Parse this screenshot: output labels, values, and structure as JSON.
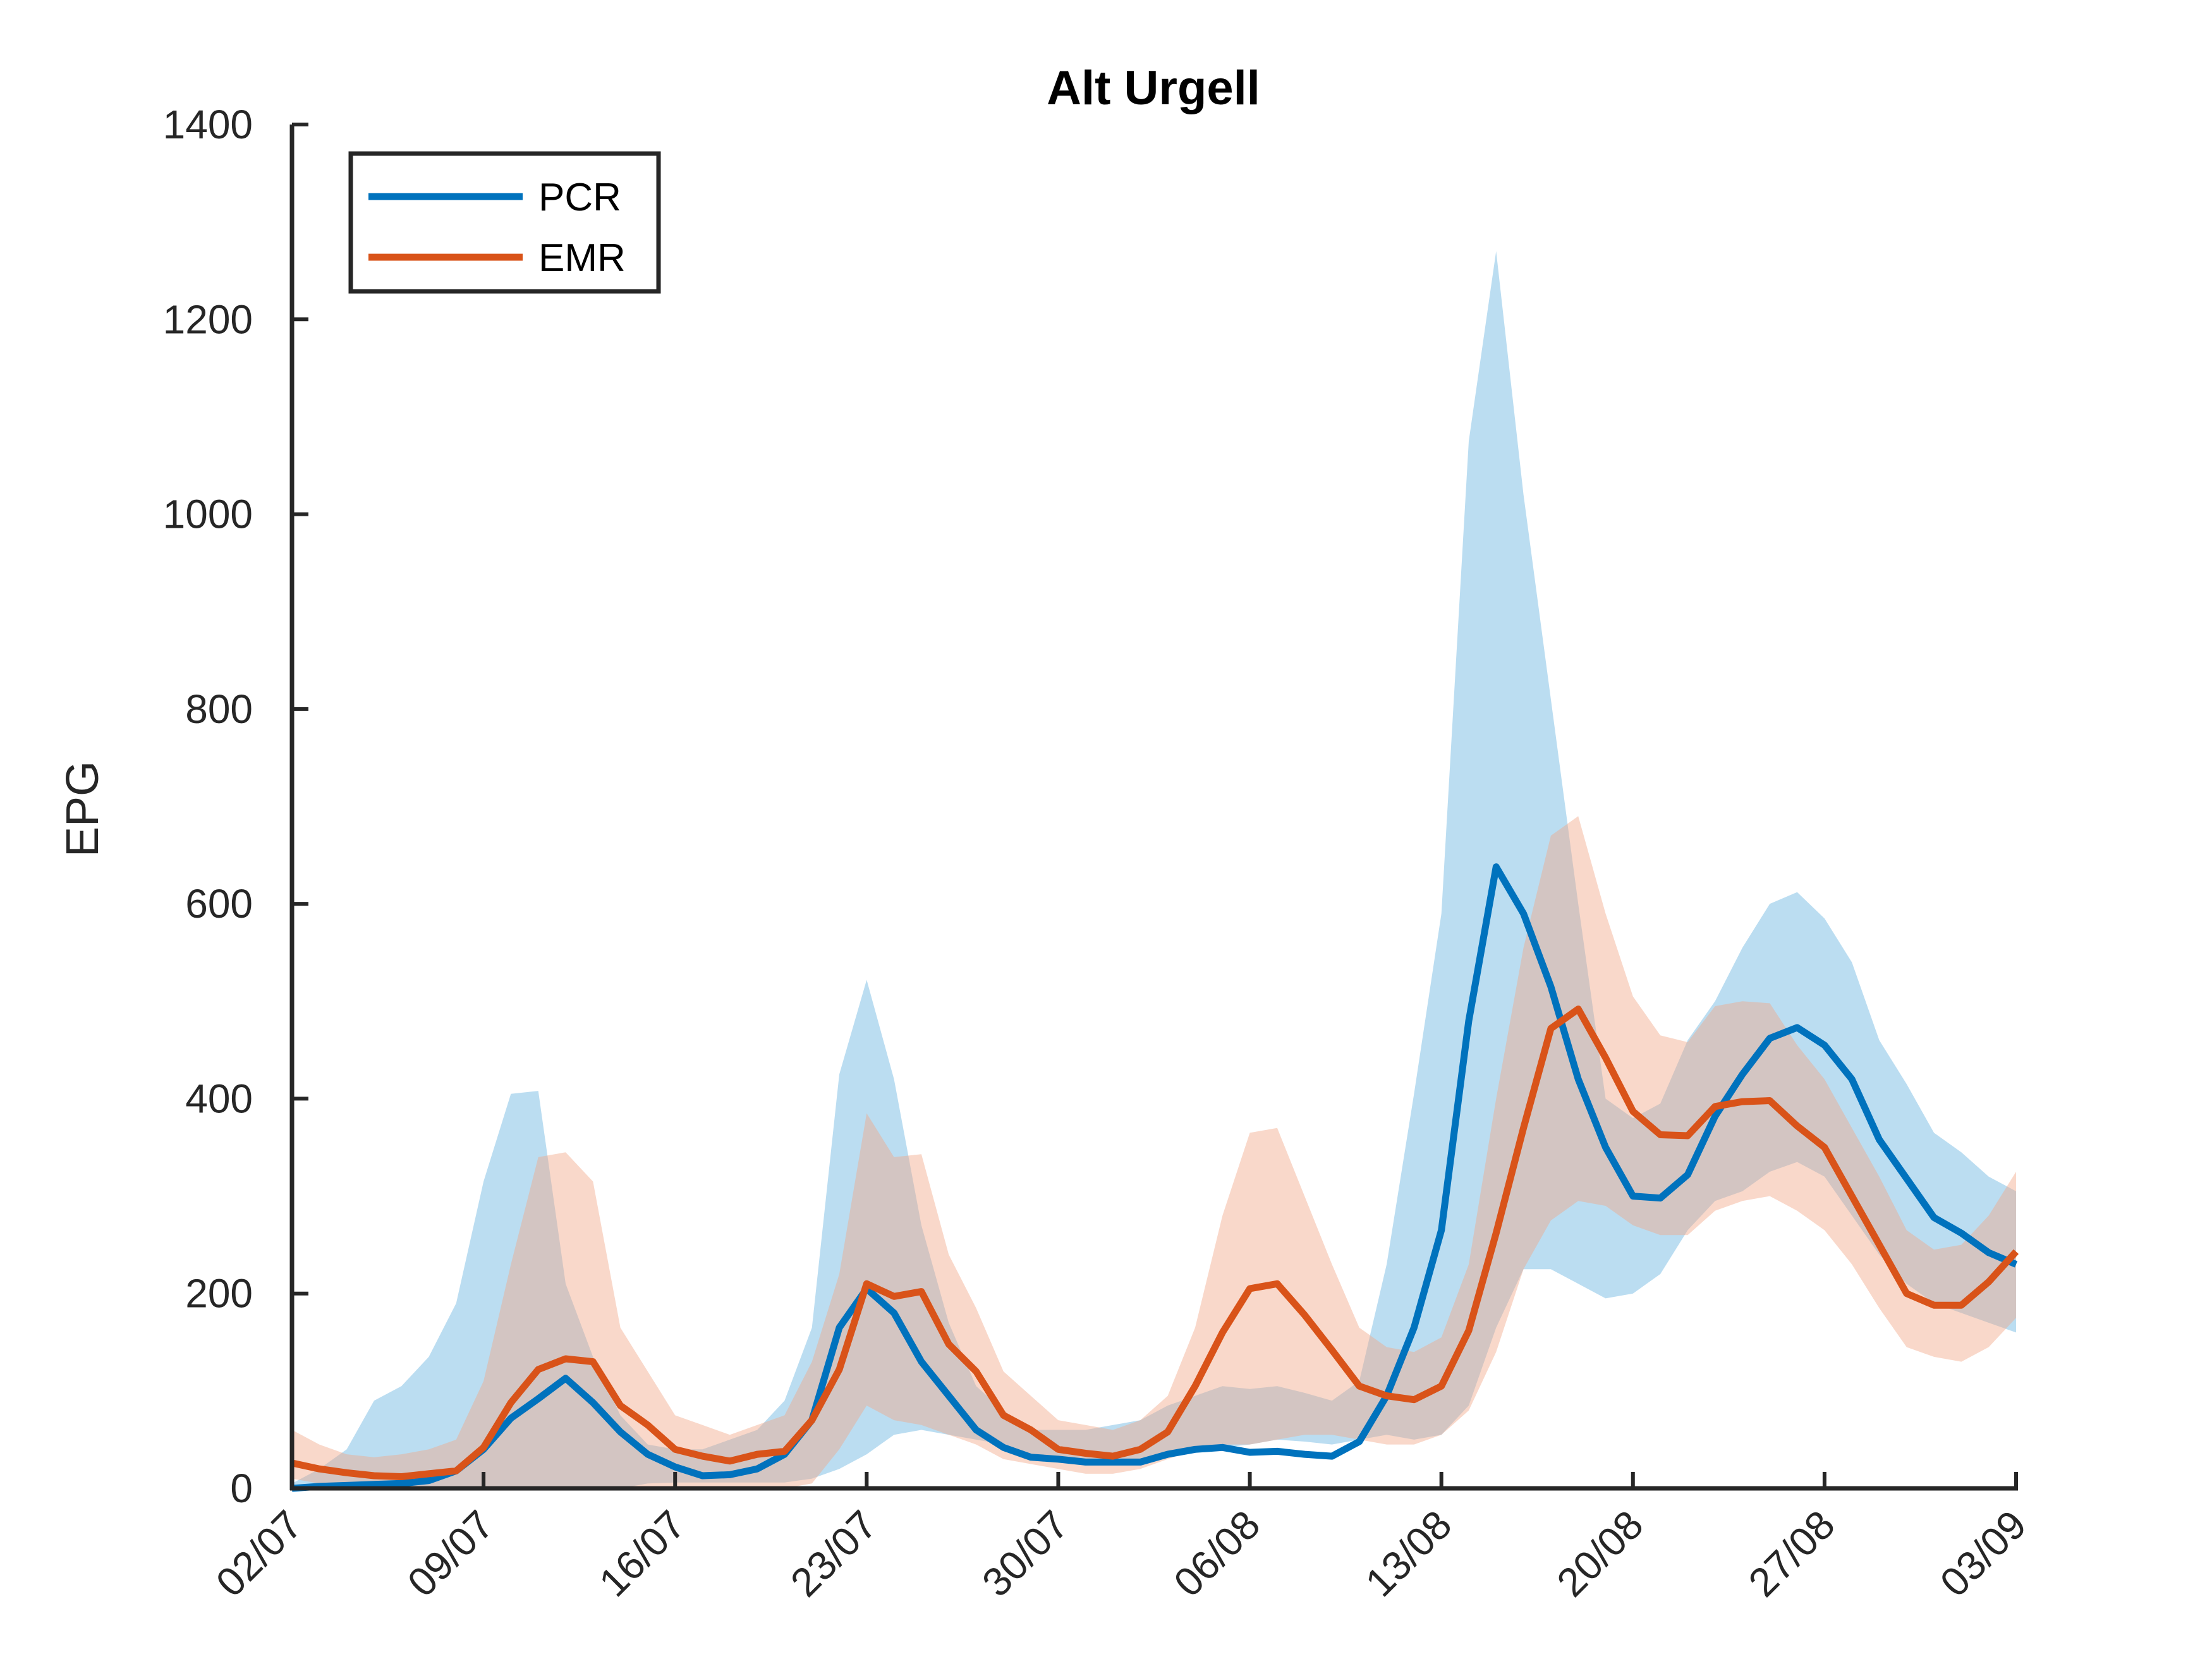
{
  "chart_data": {
    "type": "line",
    "title": "Alt Urgell",
    "xlabel": "",
    "ylabel": "EPG",
    "ylim": [
      0,
      1400
    ],
    "yticks": [
      0,
      200,
      400,
      600,
      800,
      1000,
      1200,
      1400
    ],
    "xlim": [
      "2020-07-02",
      "2020-09-03"
    ],
    "xtick_labels": [
      "02/07",
      "09/07",
      "16/07",
      "23/07",
      "30/07",
      "06/08",
      "13/08",
      "20/08",
      "27/08",
      "03/09"
    ],
    "legend": {
      "position": "top-left",
      "entries": [
        "PCR",
        "EMR"
      ]
    },
    "grid": false,
    "series": [
      {
        "name": "PCR",
        "color": "#0072BD",
        "band_color": "#4DA6D9",
        "x": [
          "2020-07-02",
          "2020-07-03",
          "2020-07-04",
          "2020-07-05",
          "2020-07-06",
          "2020-07-07",
          "2020-07-08",
          "2020-07-09",
          "2020-07-10",
          "2020-07-11",
          "2020-07-12",
          "2020-07-13",
          "2020-07-14",
          "2020-07-15",
          "2020-07-16",
          "2020-07-17",
          "2020-07-18",
          "2020-07-19",
          "2020-07-20",
          "2020-07-21",
          "2020-07-22",
          "2020-07-23",
          "2020-07-24",
          "2020-07-25",
          "2020-07-26",
          "2020-07-27",
          "2020-07-28",
          "2020-07-29",
          "2020-07-30",
          "2020-07-31",
          "2020-08-01",
          "2020-08-02",
          "2020-08-03",
          "2020-08-04",
          "2020-08-05",
          "2020-08-06",
          "2020-08-07",
          "2020-08-08",
          "2020-08-09",
          "2020-08-10",
          "2020-08-11",
          "2020-08-12",
          "2020-08-13",
          "2020-08-14",
          "2020-08-15",
          "2020-08-16",
          "2020-08-17",
          "2020-08-18",
          "2020-08-19",
          "2020-08-20",
          "2020-08-21",
          "2020-08-22",
          "2020-08-23",
          "2020-08-24",
          "2020-08-25",
          "2020-08-26",
          "2020-08-27",
          "2020-08-28",
          "2020-08-29",
          "2020-08-30",
          "2020-08-31",
          "2020-09-01",
          "2020-09-02",
          "2020-09-03"
        ],
        "values": [
          0,
          2,
          3,
          4,
          5,
          8,
          18,
          40,
          72,
          92,
          113,
          88,
          58,
          35,
          22,
          13,
          14,
          20,
          35,
          70,
          165,
          205,
          180,
          130,
          95,
          60,
          42,
          32,
          30,
          27,
          27,
          27,
          35,
          40,
          42,
          37,
          38,
          35,
          33,
          48,
          95,
          165,
          265,
          480,
          638,
          590,
          515,
          420,
          350,
          300,
          298,
          322,
          382,
          425,
          462,
          473,
          455,
          420,
          358,
          318,
          278,
          262,
          242,
          230
        ],
        "lower": [
          0,
          0,
          0,
          0,
          0,
          0,
          0,
          0,
          0,
          0,
          0,
          0,
          0,
          5,
          6,
          6,
          6,
          6,
          6,
          10,
          20,
          35,
          55,
          60,
          55,
          50,
          45,
          32,
          30,
          27,
          27,
          27,
          35,
          40,
          42,
          45,
          50,
          48,
          45,
          50,
          55,
          50,
          55,
          85,
          165,
          225,
          225,
          210,
          195,
          200,
          220,
          265,
          295,
          305,
          325,
          335,
          320,
          280,
          240,
          210,
          190,
          180,
          170,
          160
        ],
        "upper": [
          5,
          20,
          40,
          90,
          105,
          135,
          190,
          315,
          405,
          408,
          210,
          135,
          75,
          45,
          40,
          40,
          50,
          60,
          90,
          165,
          425,
          522,
          420,
          270,
          170,
          105,
          80,
          60,
          60,
          60,
          65,
          70,
          85,
          95,
          105,
          102,
          105,
          98,
          90,
          110,
          230,
          405,
          590,
          1075,
          1270,
          1020,
          810,
          600,
          400,
          380,
          395,
          460,
          500,
          555,
          600,
          612,
          585,
          540,
          460,
          415,
          365,
          345,
          320,
          305
        ]
      },
      {
        "name": "EMR",
        "color": "#D95319",
        "band_color": "#F2A98A",
        "x": [
          "2020-07-02",
          "2020-07-03",
          "2020-07-04",
          "2020-07-05",
          "2020-07-06",
          "2020-07-07",
          "2020-07-08",
          "2020-07-09",
          "2020-07-10",
          "2020-07-11",
          "2020-07-12",
          "2020-07-13",
          "2020-07-14",
          "2020-07-15",
          "2020-07-16",
          "2020-07-17",
          "2020-07-18",
          "2020-07-19",
          "2020-07-20",
          "2020-07-21",
          "2020-07-22",
          "2020-07-23",
          "2020-07-24",
          "2020-07-25",
          "2020-07-26",
          "2020-07-27",
          "2020-07-28",
          "2020-07-29",
          "2020-07-30",
          "2020-07-31",
          "2020-08-01",
          "2020-08-02",
          "2020-08-03",
          "2020-08-04",
          "2020-08-05",
          "2020-08-06",
          "2020-08-07",
          "2020-08-08",
          "2020-08-09",
          "2020-08-10",
          "2020-08-11",
          "2020-08-12",
          "2020-08-13",
          "2020-08-14",
          "2020-08-15",
          "2020-08-16",
          "2020-08-17",
          "2020-08-18",
          "2020-08-19",
          "2020-08-20",
          "2020-08-21",
          "2020-08-22",
          "2020-08-23",
          "2020-08-24",
          "2020-08-25",
          "2020-08-26",
          "2020-08-27",
          "2020-08-28",
          "2020-08-29",
          "2020-08-30",
          "2020-08-31",
          "2020-09-01",
          "2020-09-02",
          "2020-09-03"
        ],
        "values": [
          26,
          20,
          16,
          13,
          12,
          15,
          18,
          42,
          88,
          122,
          133,
          130,
          85,
          65,
          40,
          33,
          28,
          35,
          38,
          70,
          122,
          210,
          197,
          202,
          148,
          120,
          75,
          60,
          40,
          36,
          33,
          40,
          58,
          105,
          160,
          205,
          210,
          178,
          142,
          105,
          95,
          91,
          105,
          162,
          262,
          370,
          472,
          492,
          442,
          387,
          363,
          362,
          392,
          397,
          398,
          372,
          350,
          300,
          250,
          200,
          188,
          188,
          212,
          243
        ],
        "lower": [
          10,
          5,
          2,
          0,
          0,
          0,
          0,
          0,
          0,
          0,
          0,
          0,
          0,
          0,
          0,
          0,
          0,
          0,
          0,
          5,
          40,
          85,
          70,
          65,
          55,
          45,
          30,
          25,
          20,
          15,
          15,
          20,
          30,
          40,
          45,
          45,
          50,
          55,
          55,
          50,
          45,
          45,
          55,
          80,
          140,
          225,
          275,
          295,
          290,
          270,
          260,
          260,
          285,
          295,
          300,
          285,
          265,
          230,
          185,
          145,
          135,
          130,
          145,
          175
        ],
        "upper": [
          60,
          45,
          35,
          32,
          35,
          40,
          50,
          110,
          230,
          340,
          345,
          315,
          165,
          120,
          75,
          65,
          55,
          65,
          75,
          130,
          220,
          385,
          340,
          343,
          240,
          185,
          120,
          95,
          70,
          65,
          60,
          70,
          95,
          165,
          280,
          365,
          370,
          300,
          230,
          165,
          145,
          140,
          155,
          230,
          400,
          555,
          670,
          690,
          590,
          505,
          465,
          458,
          495,
          500,
          498,
          455,
          420,
          370,
          320,
          265,
          245,
          250,
          280,
          325
        ]
      }
    ]
  }
}
